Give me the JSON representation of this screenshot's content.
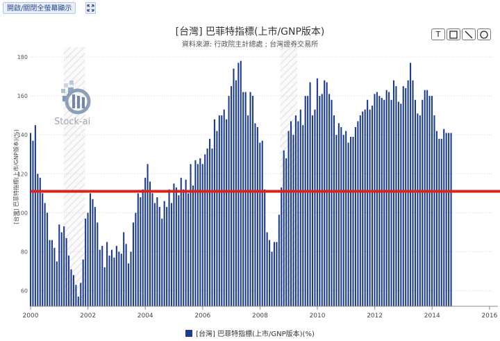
{
  "toolbar": {
    "toggle_label": "開啟/關閉全螢幕顯示",
    "expand_icon": "expand-icon"
  },
  "header": {
    "title": "[台灣] 巴菲特指標(上市/GNP版本)",
    "subtitle": "資料來源: 行政院主計總處 ; 台灣證券交易所"
  },
  "drawing_tools": [
    {
      "name": "text-tool",
      "label": "T"
    },
    {
      "name": "rect-tool",
      "icon": "square-icon"
    },
    {
      "name": "line-tool",
      "icon": "line-icon"
    },
    {
      "name": "circle-tool",
      "icon": "circle-icon"
    }
  ],
  "watermark": {
    "text": "Stock-ai"
  },
  "colors": {
    "bar": "#1a3a8f",
    "reference_line": "#d9241c",
    "grid": "#d4d4d4"
  },
  "chart_data": {
    "type": "bar",
    "ylabel": "[台灣] 巴菲特指標(上市/GNP版本)(%)",
    "ylim": [
      52,
      185
    ],
    "yticks": [
      60,
      80,
      100,
      120,
      140,
      160,
      180
    ],
    "xlim": [
      2000.0,
      2016.1
    ],
    "xticks": [
      2000,
      2002,
      2004,
      2006,
      2008,
      2010,
      2012,
      2014,
      2016
    ],
    "reference_line": 111,
    "shaded_periods": [
      [
        2001.15,
        2001.9
      ],
      [
        2008.7,
        2009.3
      ]
    ],
    "series": [
      {
        "name": "[台灣] 巴菲特指標(上市/GNP版本)(%)",
        "start": 2000.0,
        "step": 0.0833,
        "values": [
          141,
          137,
          145,
          120,
          118,
          110,
          105,
          100,
          86,
          86,
          82,
          75,
          94,
          90,
          93,
          87,
          78,
          71,
          68,
          63,
          57,
          64,
          76,
          97,
          100,
          110,
          107,
          103,
          95,
          81,
          83,
          72,
          85,
          78,
          81,
          77,
          83,
          80,
          79,
          90,
          84,
          74,
          80,
          95,
          100,
          110,
          108,
          112,
          118,
          125,
          116,
          110,
          105,
          108,
          103,
          97,
          106,
          103,
          112,
          105,
          115,
          113,
          109,
          118,
          112,
          117,
          110,
          125,
          114,
          127,
          125,
          128,
          125,
          130,
          133,
          138,
          133,
          148,
          142,
          150,
          150,
          153,
          148,
          160,
          165,
          174,
          168,
          177,
          178,
          162,
          162,
          150,
          162,
          160,
          146,
          144,
          136,
          137,
          112,
          90,
          86,
          80,
          85,
          85,
          99,
          113,
          132,
          128,
          142,
          147,
          140,
          150,
          147,
          153,
          145,
          160,
          160,
          167,
          150,
          153,
          169,
          160,
          161,
          168,
          167,
          161,
          158,
          150,
          140,
          146,
          144,
          140,
          142,
          136,
          139,
          139,
          144,
          147,
          150,
          152,
          153,
          158,
          153,
          155,
          161,
          162,
          160,
          159,
          158,
          163,
          162,
          158,
          168,
          165,
          157,
          156,
          165,
          164,
          168,
          177,
          168,
          158,
          151,
          150,
          158,
          163,
          163,
          160,
          160,
          150,
          142,
          138,
          138,
          143,
          141,
          141,
          141
        ]
      }
    ]
  },
  "legend": {
    "label": "[台灣] 巴菲特指標(上市/GNP版本)(%)"
  }
}
